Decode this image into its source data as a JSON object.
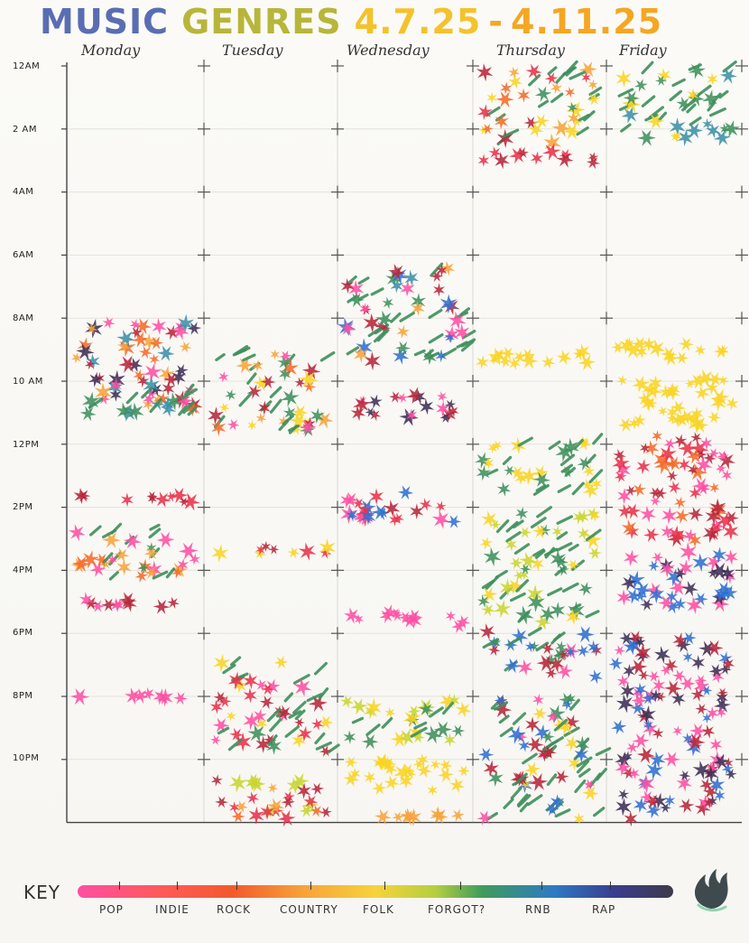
{
  "title": {
    "word1": "MUSIC",
    "word2": "GENRES",
    "dates": "4.7.25",
    "dash": "-",
    "dates_end": "4.11.25"
  },
  "days": [
    "Monday",
    "Tuesday",
    "Wednesday",
    "Thursday",
    "Friday"
  ],
  "times": [
    "12AM",
    "2 AM",
    "4AM",
    "6AM",
    "8AM",
    "10 AM",
    "12PM",
    "2PM",
    "4PM",
    "6PM",
    "8PM",
    "10PM"
  ],
  "key": {
    "label": "KEY",
    "genres": [
      "POP",
      "INDIE",
      "ROCK",
      "COUNTRY",
      "FOLK",
      "FORGOT?",
      "RNB",
      "RAP"
    ]
  },
  "colors": {
    "pop": "#ff4fa3",
    "indie": "#e8314a",
    "rock": "#f46a2a",
    "country": "#f9d423",
    "folk": "#c9d52f",
    "forgot": "#3e8f5c",
    "rnb": "#2f6fd0",
    "rap": "#3d2f55",
    "orange": "#f7a33a",
    "darkred": "#b7263a",
    "teal": "#3b8fa8"
  },
  "listening": [
    {
      "day": 0,
      "start": 8.0,
      "end": 11.0,
      "mix": [
        "orange",
        "rock",
        "rap",
        "teal",
        "pop",
        "darkred"
      ]
    },
    {
      "day": 0,
      "start": 10.3,
      "end": 11.2,
      "mix": [
        "pop",
        "teal",
        "forgot"
      ]
    },
    {
      "day": 0,
      "start": 13.5,
      "end": 14.0,
      "mix": [
        "darkred",
        "indie"
      ]
    },
    {
      "day": 0,
      "start": 14.5,
      "end": 16.4,
      "mix": [
        "forgot",
        "orange",
        "rock",
        "pop"
      ]
    },
    {
      "day": 0,
      "start": 16.8,
      "end": 17.3,
      "mix": [
        "pop",
        "darkred"
      ]
    },
    {
      "day": 0,
      "start": 19.8,
      "end": 20.2,
      "mix": [
        "pop"
      ]
    },
    {
      "day": 1,
      "start": 9.0,
      "end": 11.8,
      "mix": [
        "darkred",
        "rock",
        "orange",
        "pop",
        "country",
        "forgot"
      ]
    },
    {
      "day": 1,
      "start": 15.1,
      "end": 15.6,
      "mix": [
        "darkred",
        "country",
        "indie"
      ]
    },
    {
      "day": 1,
      "start": 18.8,
      "end": 21.9,
      "mix": [
        "darkred",
        "indie",
        "country",
        "forgot",
        "pop"
      ]
    },
    {
      "day": 1,
      "start": 22.4,
      "end": 24.0,
      "mix": [
        "rock",
        "indie",
        "orange",
        "darkred",
        "folk"
      ]
    },
    {
      "day": 2,
      "start": 6.3,
      "end": 9.6,
      "mix": [
        "orange",
        "rnb",
        "teal",
        "pop",
        "darkred",
        "forgot"
      ]
    },
    {
      "day": 2,
      "start": 10.3,
      "end": 11.3,
      "mix": [
        "pop",
        "rap",
        "darkred"
      ]
    },
    {
      "day": 2,
      "start": 13.4,
      "end": 14.6,
      "mix": [
        "pop",
        "rnb",
        "indie",
        "darkred"
      ]
    },
    {
      "day": 2,
      "start": 17.2,
      "end": 17.9,
      "mix": [
        "pop"
      ]
    },
    {
      "day": 2,
      "start": 20.0,
      "end": 21.6,
      "mix": [
        "country",
        "forgot",
        "folk"
      ]
    },
    {
      "day": 2,
      "start": 21.9,
      "end": 23.2,
      "mix": [
        "country"
      ]
    },
    {
      "day": 2,
      "start": 23.6,
      "end": 24.0,
      "mix": [
        "orange"
      ]
    },
    {
      "day": 3,
      "start": 0.0,
      "end": 2.6,
      "mix": [
        "forgot",
        "rock",
        "orange",
        "indie",
        "darkred",
        "country"
      ]
    },
    {
      "day": 3,
      "start": 2.6,
      "end": 3.2,
      "mix": [
        "indie",
        "darkred"
      ]
    },
    {
      "day": 3,
      "start": 8.8,
      "end": 9.6,
      "mix": [
        "country"
      ]
    },
    {
      "day": 3,
      "start": 11.8,
      "end": 13.8,
      "mix": [
        "country",
        "forgot"
      ]
    },
    {
      "day": 3,
      "start": 14.0,
      "end": 17.8,
      "mix": [
        "country",
        "forgot",
        "folk"
      ]
    },
    {
      "day": 3,
      "start": 17.8,
      "end": 19.6,
      "mix": [
        "rnb",
        "pop",
        "darkred",
        "forgot"
      ]
    },
    {
      "day": 3,
      "start": 19.8,
      "end": 24.0,
      "mix": [
        "forgot",
        "rnb",
        "pop",
        "darkred",
        "country"
      ]
    },
    {
      "day": 4,
      "start": 0.0,
      "end": 2.4,
      "mix": [
        "forgot",
        "country",
        "teal"
      ]
    },
    {
      "day": 4,
      "start": 8.6,
      "end": 9.4,
      "mix": [
        "country"
      ]
    },
    {
      "day": 4,
      "start": 9.7,
      "end": 11.6,
      "mix": [
        "country"
      ]
    },
    {
      "day": 4,
      "start": 11.6,
      "end": 15.2,
      "mix": [
        "indie",
        "darkred",
        "pop",
        "rock"
      ]
    },
    {
      "day": 4,
      "start": 15.2,
      "end": 17.3,
      "mix": [
        "rnb",
        "pop",
        "rap"
      ]
    },
    {
      "day": 4,
      "start": 18.0,
      "end": 24.0,
      "mix": [
        "pop",
        "rnb",
        "rap",
        "darkred"
      ]
    }
  ]
}
